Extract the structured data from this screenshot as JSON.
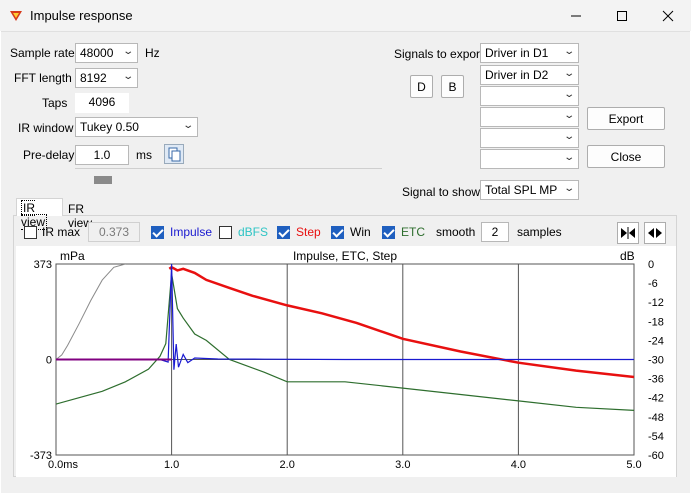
{
  "window": {
    "title": "Impulse response",
    "controls": {
      "minimize": "minimize-icon",
      "maximize": "maximize-icon",
      "close": "close-icon"
    }
  },
  "settings": {
    "sample_rate": {
      "label": "Sample rate",
      "value": "48000",
      "unit": "Hz"
    },
    "fft_length": {
      "label": "FFT length",
      "value": "8192"
    },
    "taps": {
      "label": "Taps",
      "value": "4096"
    },
    "ir_window": {
      "label": "IR window",
      "value": "Tukey 0.50"
    },
    "pre_delay": {
      "label": "Pre-delay",
      "value": "1.0",
      "unit": "ms"
    }
  },
  "export": {
    "label": "Signals to export",
    "signals": [
      "Driver in D1",
      "Driver in D2",
      "",
      "",
      "",
      ""
    ],
    "d_button": "D",
    "b_button": "B",
    "export_button": "Export",
    "close_button": "Close"
  },
  "signal_to_show": {
    "label": "Signal to show",
    "value": "Total SPL MP"
  },
  "tabs": {
    "ir_view": "IR view",
    "fr_view": "FR view",
    "active": "IR view"
  },
  "options": {
    "ir_max": {
      "label": "IR max",
      "checked": false,
      "value": "0.373"
    },
    "impulse": {
      "label": "Impulse",
      "checked": true
    },
    "dbfs": {
      "label": "dBFS",
      "checked": false
    },
    "step": {
      "label": "Step",
      "checked": true
    },
    "win": {
      "label": "Win",
      "checked": true
    },
    "etc": {
      "label": "ETC",
      "checked": true
    },
    "smooth_label": "smooth",
    "smooth_value": "2",
    "samples_label": "samples"
  },
  "colors": {
    "impulse": "#1a1ad0",
    "dbfs": "#2ec4c4",
    "step": "#e81010",
    "win": "#8a8a8a",
    "etc": "#2e6e2e",
    "purple": "#800080"
  },
  "chart_data": {
    "type": "line",
    "title": "Impulse, ETC, Step",
    "y_left_label": "mPa",
    "y_right_label": "dB",
    "x_ticks": [
      "0.0ms",
      "1.0",
      "2.0",
      "3.0",
      "4.0",
      "5.0"
    ],
    "x_range": [
      0,
      5
    ],
    "y_left_ticks": [
      "373",
      "0",
      "-373"
    ],
    "y_left_range": [
      -373,
      373
    ],
    "y_right_ticks": [
      "0",
      "-6",
      "-12",
      "-18",
      "-24",
      "-30",
      "-36",
      "-42",
      "-48",
      "-54",
      "-60"
    ],
    "y_right_range": [
      -60,
      0
    ],
    "series": [
      {
        "name": "Win",
        "axis": "left",
        "x": [
          0,
          0.05,
          0.1,
          0.2,
          0.3,
          0.4,
          0.5,
          0.6
        ],
        "y": [
          0,
          18,
          55,
          140,
          230,
          310,
          360,
          373
        ]
      },
      {
        "name": "Step",
        "axis": "right",
        "x": [
          0.98,
          1.0,
          1.05,
          1.1,
          1.2,
          1.3,
          1.5,
          1.7,
          2.0,
          2.3,
          2.6,
          3.0,
          3.5,
          4.0,
          4.5,
          5.0
        ],
        "y": [
          -1.5,
          -1,
          -2,
          -1.5,
          -2.8,
          -5,
          -7.5,
          -10,
          -13,
          -15.5,
          -18.5,
          -23.5,
          -27.5,
          -31,
          -33.5,
          -35.5
        ]
      },
      {
        "name": "ETC",
        "axis": "right",
        "x": [
          0,
          0.2,
          0.4,
          0.6,
          0.8,
          0.9,
          0.95,
          1.0,
          1.05,
          1.1,
          1.2,
          1.3,
          1.5,
          1.8,
          2.0,
          2.5,
          3.0,
          3.5,
          4.0,
          4.5,
          5.0
        ],
        "y": [
          -44,
          -42,
          -40,
          -37,
          -33,
          -29,
          -25,
          -3,
          -14,
          -17,
          -22,
          -24,
          -30,
          -34,
          -37,
          -37,
          -39,
          -41,
          -43,
          -45,
          -46
        ]
      },
      {
        "name": "Impulse",
        "axis": "left",
        "x": [
          0,
          0.9,
          0.97,
          1.0,
          1.02,
          1.04,
          1.06,
          1.1,
          1.14,
          1.2,
          1.4,
          1.8,
          2.5,
          3.5,
          5.0
        ],
        "y": [
          0,
          0,
          -10,
          373,
          -40,
          60,
          -30,
          20,
          -12,
          6,
          2,
          1,
          0,
          0,
          0
        ]
      },
      {
        "name": "Preimpulse",
        "axis": "left",
        "x": [
          0,
          0.3,
          0.6,
          0.8,
          0.95,
          1.0
        ],
        "y": [
          0,
          0,
          0,
          0,
          0,
          0
        ]
      }
    ]
  }
}
